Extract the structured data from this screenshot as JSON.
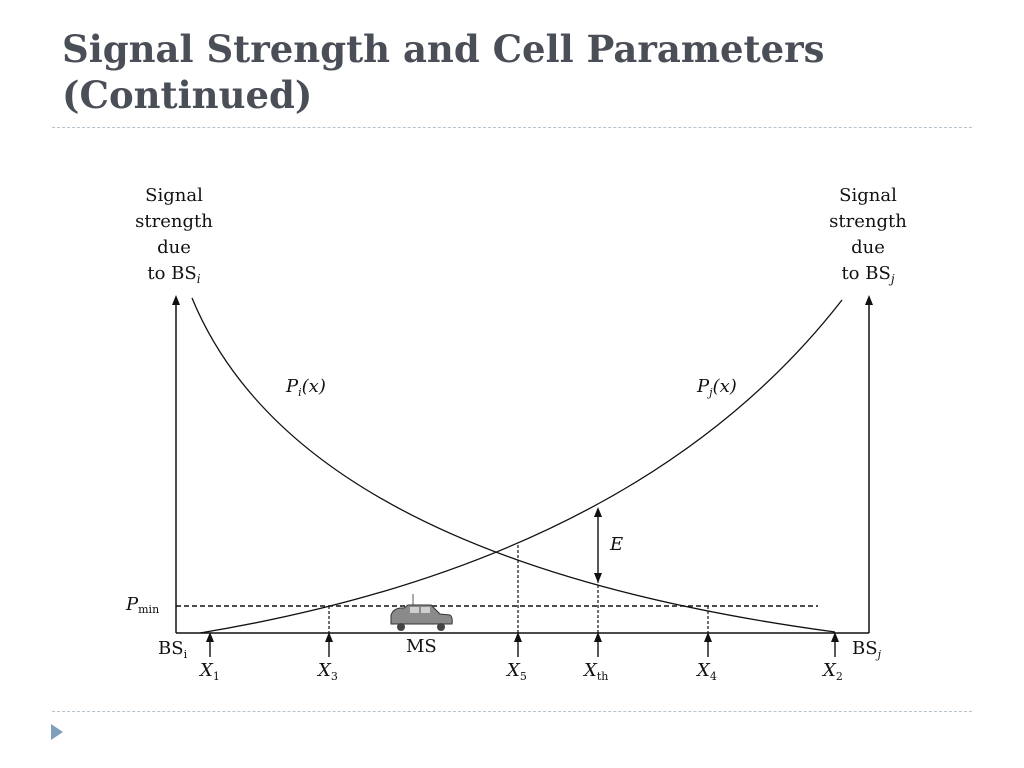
{
  "slide": {
    "title_line1": "Signal Strength and Cell Parameters",
    "title_line2": "(Continued)"
  },
  "diagram": {
    "left_axis_label": [
      "Signal",
      "strength",
      "due",
      "to BS"
    ],
    "left_axis_subscript": "i",
    "right_axis_label": [
      "Signal",
      "strength",
      "due",
      "to BS"
    ],
    "right_axis_subscript": "j",
    "curve_i_label": {
      "base": "P",
      "sub": "i",
      "arg": "(x)"
    },
    "curve_j_label": {
      "base": "P",
      "sub": "j",
      "arg": "(x)"
    },
    "threshold_label": {
      "base": "P",
      "sub": "min"
    },
    "gap_label": "E",
    "mobile_label": "MS",
    "left_station": {
      "base": "BS",
      "sub": "i"
    },
    "right_station": {
      "base": "BS",
      "sub": "j"
    },
    "positions": [
      {
        "base": "X",
        "sub": "1"
      },
      {
        "base": "X",
        "sub": "3"
      },
      {
        "base": "X",
        "sub": "5"
      },
      {
        "base": "X",
        "sub": "th"
      },
      {
        "base": "X",
        "sub": "4"
      },
      {
        "base": "X",
        "sub": "2"
      }
    ]
  },
  "colors": {
    "title": "#4a4f57",
    "rule": "#b7c3cc",
    "bullet": "#7f9fbd",
    "ink": "#111111"
  },
  "icons": {
    "bullet": "triangle-bullet-icon",
    "vehicle": "car-icon"
  }
}
